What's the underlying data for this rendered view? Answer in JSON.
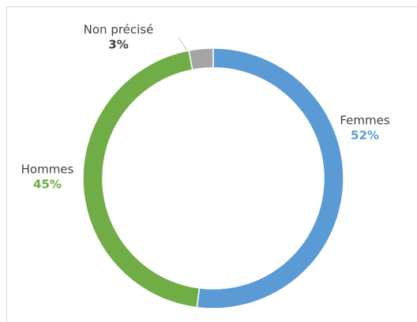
{
  "chart_data": {
    "type": "donut",
    "categories": [
      "Femmes",
      "Hommes",
      "Non précisé"
    ],
    "values": [
      52,
      45,
      3
    ],
    "value_labels": [
      "52%",
      "45%",
      "3%"
    ],
    "colors": [
      "#5b9bd5",
      "#70ad47",
      "#a5a5a5"
    ]
  }
}
